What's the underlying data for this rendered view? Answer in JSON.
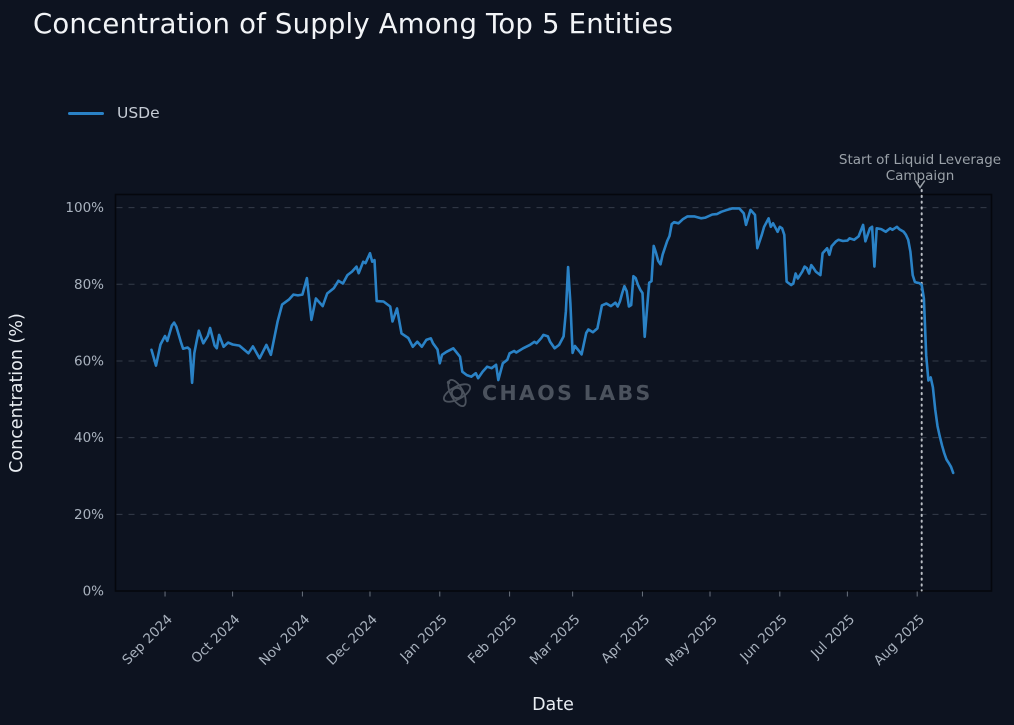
{
  "title": "Concentration of Supply Among Top 5 Entities",
  "legend": {
    "label": "USDe"
  },
  "watermark": {
    "text": "CHAOS LABS",
    "icon": "chaos-labs-orbit-logo"
  },
  "annotation": {
    "line1": "Start of Liquid Leverage",
    "line2": "Campaign",
    "arrow_glyph": "v",
    "date": "2025-08-03"
  },
  "axes": {
    "x_label": "Date",
    "y_label": "Concentration (%)",
    "x_ticks": [
      {
        "label": "Sep 2024",
        "date": "2024-09-01"
      },
      {
        "label": "Oct 2024",
        "date": "2024-10-01"
      },
      {
        "label": "Nov 2024",
        "date": "2024-11-01"
      },
      {
        "label": "Dec 2024",
        "date": "2024-12-01"
      },
      {
        "label": "Jan 2025",
        "date": "2025-01-01"
      },
      {
        "label": "Feb 2025",
        "date": "2025-02-01"
      },
      {
        "label": "Mar 2025",
        "date": "2025-03-01"
      },
      {
        "label": "Apr 2025",
        "date": "2025-04-01"
      },
      {
        "label": "May 2025",
        "date": "2025-05-01"
      },
      {
        "label": "Jun 2025",
        "date": "2025-06-01"
      },
      {
        "label": "Jul 2025",
        "date": "2025-07-01"
      },
      {
        "label": "Aug 2025",
        "date": "2025-08-01"
      }
    ],
    "y_ticks": [
      {
        "label": "0%",
        "value": 0
      },
      {
        "label": "20%",
        "value": 20
      },
      {
        "label": "40%",
        "value": 40
      },
      {
        "label": "60%",
        "value": 60
      },
      {
        "label": "80%",
        "value": 80
      },
      {
        "label": "100%",
        "value": 100
      }
    ]
  },
  "theme": {
    "background": "#0d1320",
    "title_color": "#f2f4f7",
    "tick_color": "#a9b2be",
    "axis_label_color": "#e9edf2",
    "grid_color": "#545d6c",
    "line_color": "#2a82c6",
    "watermark_color": "#4f5661",
    "annotation_color": "#9aa1a8",
    "vline_color": "#ced2d8",
    "plot_border_color": "#05070d",
    "legend_text_color": "#c6ccd5"
  },
  "chart_data": {
    "type": "line",
    "title": "Concentration of Supply Among Top 5 Entities",
    "xlabel": "Date",
    "ylabel": "Concentration (%)",
    "ylim": [
      0,
      100
    ],
    "xlim": [
      "2024-08-10",
      "2025-09-03"
    ],
    "grid": "horizontal-dashed",
    "legend_position": "top-left",
    "annotation_vline_date": "2025-08-03",
    "series": [
      {
        "name": "USDe",
        "color": "#2a82c6",
        "points": [
          [
            "2024-08-26",
            62.9
          ],
          [
            "2024-08-28",
            58.8
          ],
          [
            "2024-08-30",
            64.3
          ],
          [
            "2024-09-01",
            66.5
          ],
          [
            "2024-09-02",
            65.2
          ],
          [
            "2024-09-04",
            69.2
          ],
          [
            "2024-09-05",
            70.0
          ],
          [
            "2024-09-06",
            69.0
          ],
          [
            "2024-09-08",
            65.0
          ],
          [
            "2024-09-09",
            63.2
          ],
          [
            "2024-09-11",
            63.5
          ],
          [
            "2024-09-12",
            63.0
          ],
          [
            "2024-09-13",
            54.3
          ],
          [
            "2024-09-14",
            62.0
          ],
          [
            "2024-09-15",
            65.1
          ],
          [
            "2024-09-16",
            67.9
          ],
          [
            "2024-09-18",
            64.6
          ],
          [
            "2024-09-20",
            66.5
          ],
          [
            "2024-09-21",
            68.6
          ],
          [
            "2024-09-23",
            64.0
          ],
          [
            "2024-09-24",
            63.3
          ],
          [
            "2024-09-25",
            66.8
          ],
          [
            "2024-09-27",
            63.7
          ],
          [
            "2024-09-29",
            64.8
          ],
          [
            "2024-10-01",
            64.3
          ],
          [
            "2024-10-04",
            64.0
          ],
          [
            "2024-10-08",
            62.0
          ],
          [
            "2024-10-10",
            63.8
          ],
          [
            "2024-10-13",
            60.7
          ],
          [
            "2024-10-16",
            64.2
          ],
          [
            "2024-10-18",
            61.6
          ],
          [
            "2024-10-21",
            70.3
          ],
          [
            "2024-10-23",
            74.7
          ],
          [
            "2024-10-26",
            76.0
          ],
          [
            "2024-10-28",
            77.3
          ],
          [
            "2024-10-30",
            77.1
          ],
          [
            "2024-11-01",
            77.3
          ],
          [
            "2024-11-03",
            81.6
          ],
          [
            "2024-11-05",
            70.7
          ],
          [
            "2024-11-07",
            76.3
          ],
          [
            "2024-11-10",
            74.3
          ],
          [
            "2024-11-12",
            77.6
          ],
          [
            "2024-11-15",
            79.0
          ],
          [
            "2024-11-17",
            80.9
          ],
          [
            "2024-11-19",
            80.2
          ],
          [
            "2024-11-21",
            82.4
          ],
          [
            "2024-11-23",
            83.3
          ],
          [
            "2024-11-25",
            84.6
          ],
          [
            "2024-11-26",
            82.9
          ],
          [
            "2024-11-28",
            85.9
          ],
          [
            "2024-11-29",
            85.5
          ],
          [
            "2024-12-01",
            88.1
          ],
          [
            "2024-12-02",
            85.9
          ],
          [
            "2024-12-03",
            86.3
          ],
          [
            "2024-12-04",
            75.6
          ],
          [
            "2024-12-07",
            75.5
          ],
          [
            "2024-12-10",
            74.2
          ],
          [
            "2024-12-11",
            70.3
          ],
          [
            "2024-12-13",
            73.7
          ],
          [
            "2024-12-15",
            67.2
          ],
          [
            "2024-12-18",
            66.0
          ],
          [
            "2024-12-20",
            63.7
          ],
          [
            "2024-12-22",
            65.0
          ],
          [
            "2024-12-24",
            63.7
          ],
          [
            "2024-12-26",
            65.5
          ],
          [
            "2024-12-28",
            65.9
          ],
          [
            "2024-12-29",
            64.6
          ],
          [
            "2024-12-31",
            63.0
          ],
          [
            "2025-01-01",
            59.4
          ],
          [
            "2025-01-02",
            61.6
          ],
          [
            "2025-01-04",
            62.4
          ],
          [
            "2025-01-07",
            63.3
          ],
          [
            "2025-01-10",
            61.1
          ],
          [
            "2025-01-11",
            57.2
          ],
          [
            "2025-01-13",
            56.3
          ],
          [
            "2025-01-15",
            55.9
          ],
          [
            "2025-01-17",
            56.8
          ],
          [
            "2025-01-18",
            55.5
          ],
          [
            "2025-01-20",
            57.2
          ],
          [
            "2025-01-22",
            58.5
          ],
          [
            "2025-01-24",
            58.1
          ],
          [
            "2025-01-26",
            59.0
          ],
          [
            "2025-01-27",
            55.0
          ],
          [
            "2025-01-29",
            59.4
          ],
          [
            "2025-01-31",
            60.3
          ],
          [
            "2025-02-01",
            62.0
          ],
          [
            "2025-02-03",
            62.6
          ],
          [
            "2025-02-04",
            62.2
          ],
          [
            "2025-02-07",
            63.3
          ],
          [
            "2025-02-10",
            64.2
          ],
          [
            "2025-02-12",
            65.0
          ],
          [
            "2025-02-13",
            64.6
          ],
          [
            "2025-02-15",
            65.9
          ],
          [
            "2025-02-16",
            66.8
          ],
          [
            "2025-02-18",
            66.4
          ],
          [
            "2025-02-19",
            65.0
          ],
          [
            "2025-02-21",
            63.3
          ],
          [
            "2025-02-23",
            64.2
          ],
          [
            "2025-02-25",
            66.4
          ],
          [
            "2025-02-26",
            73.0
          ],
          [
            "2025-02-27",
            84.5
          ],
          [
            "2025-02-28",
            75.0
          ],
          [
            "2025-03-01",
            62.1
          ],
          [
            "2025-03-02",
            63.9
          ],
          [
            "2025-03-04",
            62.5
          ],
          [
            "2025-03-05",
            61.7
          ],
          [
            "2025-03-07",
            67.3
          ],
          [
            "2025-03-08",
            68.2
          ],
          [
            "2025-03-10",
            67.5
          ],
          [
            "2025-03-12",
            68.5
          ],
          [
            "2025-03-14",
            74.5
          ],
          [
            "2025-03-16",
            75.0
          ],
          [
            "2025-03-18",
            74.3
          ],
          [
            "2025-03-20",
            75.2
          ],
          [
            "2025-03-21",
            74.2
          ],
          [
            "2025-03-22",
            75.5
          ],
          [
            "2025-03-23",
            77.7
          ],
          [
            "2025-03-24",
            79.5
          ],
          [
            "2025-03-25",
            78.2
          ],
          [
            "2025-03-26",
            74.2
          ],
          [
            "2025-03-27",
            74.6
          ],
          [
            "2025-03-28",
            82.1
          ],
          [
            "2025-03-29",
            81.6
          ],
          [
            "2025-03-30",
            79.9
          ],
          [
            "2025-03-31",
            78.6
          ],
          [
            "2025-04-01",
            77.7
          ],
          [
            "2025-04-02",
            66.3
          ],
          [
            "2025-04-04",
            80.4
          ],
          [
            "2025-04-05",
            80.8
          ],
          [
            "2025-04-06",
            90.0
          ],
          [
            "2025-04-07",
            88.2
          ],
          [
            "2025-04-08",
            86.1
          ],
          [
            "2025-04-09",
            85.2
          ],
          [
            "2025-04-10",
            87.8
          ],
          [
            "2025-04-12",
            91.3
          ],
          [
            "2025-04-13",
            92.6
          ],
          [
            "2025-04-14",
            95.7
          ],
          [
            "2025-04-15",
            96.2
          ],
          [
            "2025-04-17",
            95.9
          ],
          [
            "2025-04-19",
            97.0
          ],
          [
            "2025-04-21",
            97.7
          ],
          [
            "2025-04-24",
            97.7
          ],
          [
            "2025-04-27",
            97.2
          ],
          [
            "2025-04-29",
            97.4
          ],
          [
            "2025-05-02",
            98.2
          ],
          [
            "2025-05-04",
            98.3
          ],
          [
            "2025-05-06",
            98.9
          ],
          [
            "2025-05-08",
            99.3
          ],
          [
            "2025-05-11",
            99.8
          ],
          [
            "2025-05-14",
            99.8
          ],
          [
            "2025-05-16",
            98.5
          ],
          [
            "2025-05-17",
            95.5
          ],
          [
            "2025-05-19",
            99.4
          ],
          [
            "2025-05-21",
            98.1
          ],
          [
            "2025-05-22",
            89.4
          ],
          [
            "2025-05-24",
            92.9
          ],
          [
            "2025-05-25",
            95.0
          ],
          [
            "2025-05-27",
            97.2
          ],
          [
            "2025-05-28",
            95.0
          ],
          [
            "2025-05-29",
            95.9
          ],
          [
            "2025-05-31",
            93.7
          ],
          [
            "2025-06-01",
            95.0
          ],
          [
            "2025-06-02",
            94.6
          ],
          [
            "2025-06-03",
            92.9
          ],
          [
            "2025-06-04",
            80.7
          ],
          [
            "2025-06-06",
            79.8
          ],
          [
            "2025-06-07",
            80.2
          ],
          [
            "2025-06-08",
            82.8
          ],
          [
            "2025-06-09",
            81.5
          ],
          [
            "2025-06-11",
            83.3
          ],
          [
            "2025-06-12",
            84.6
          ],
          [
            "2025-06-13",
            84.2
          ],
          [
            "2025-06-14",
            82.8
          ],
          [
            "2025-06-15",
            85.0
          ],
          [
            "2025-06-16",
            84.2
          ],
          [
            "2025-06-17",
            83.3
          ],
          [
            "2025-06-19",
            82.4
          ],
          [
            "2025-06-20",
            88.1
          ],
          [
            "2025-06-22",
            89.4
          ],
          [
            "2025-06-23",
            87.7
          ],
          [
            "2025-06-24",
            89.9
          ],
          [
            "2025-06-26",
            91.2
          ],
          [
            "2025-06-27",
            91.6
          ],
          [
            "2025-06-29",
            91.3
          ],
          [
            "2025-07-01",
            91.4
          ],
          [
            "2025-07-02",
            92.0
          ],
          [
            "2025-07-04",
            91.6
          ],
          [
            "2025-07-06",
            92.5
          ],
          [
            "2025-07-08",
            95.5
          ],
          [
            "2025-07-09",
            91.2
          ],
          [
            "2025-07-11",
            94.6
          ],
          [
            "2025-07-12",
            95.0
          ],
          [
            "2025-07-13",
            84.6
          ],
          [
            "2025-07-14",
            94.6
          ],
          [
            "2025-07-16",
            94.4
          ],
          [
            "2025-07-18",
            93.7
          ],
          [
            "2025-07-20",
            94.6
          ],
          [
            "2025-07-21",
            94.2
          ],
          [
            "2025-07-23",
            95.0
          ],
          [
            "2025-07-24",
            94.4
          ],
          [
            "2025-07-26",
            93.7
          ],
          [
            "2025-07-27",
            92.9
          ],
          [
            "2025-07-28",
            91.6
          ],
          [
            "2025-07-29",
            88.5
          ],
          [
            "2025-07-30",
            82.4
          ],
          [
            "2025-07-31",
            80.6
          ],
          [
            "2025-08-01",
            80.4
          ],
          [
            "2025-08-02",
            80.3
          ],
          [
            "2025-08-03",
            79.8
          ],
          [
            "2025-08-04",
            76.3
          ],
          [
            "2025-08-05",
            61.4
          ],
          [
            "2025-08-06",
            54.9
          ],
          [
            "2025-08-07",
            55.7
          ],
          [
            "2025-08-08",
            53.1
          ],
          [
            "2025-08-09",
            47.4
          ],
          [
            "2025-08-10",
            43.0
          ],
          [
            "2025-08-11",
            40.4
          ],
          [
            "2025-08-12",
            38.0
          ],
          [
            "2025-08-13",
            36.0
          ],
          [
            "2025-08-14",
            34.3
          ],
          [
            "2025-08-15",
            33.4
          ],
          [
            "2025-08-16",
            32.4
          ],
          [
            "2025-08-17",
            30.8
          ]
        ]
      }
    ]
  }
}
